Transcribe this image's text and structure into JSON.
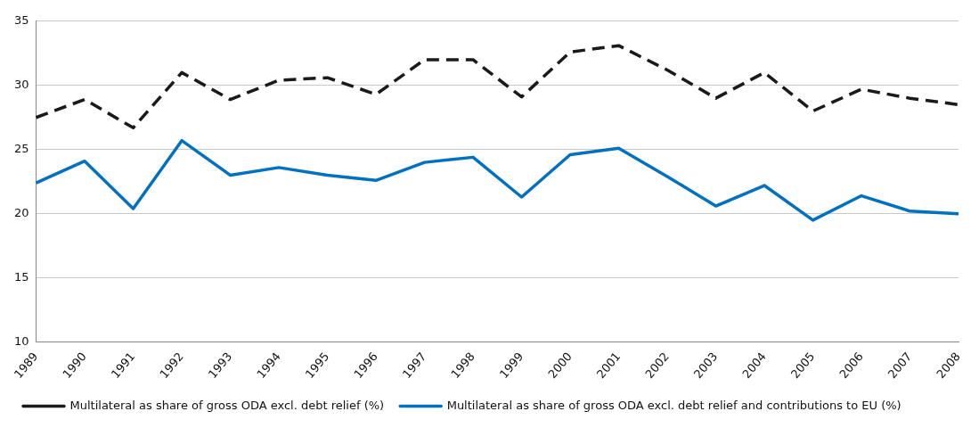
{
  "chart_data": {
    "type": "line",
    "categories": [
      "1989",
      "1990",
      "1991",
      "1992",
      "1993",
      "1994",
      "1995",
      "1996",
      "1997",
      "1998",
      "1999",
      "2000",
      "2001",
      "2002",
      "2003",
      "2004",
      "2005",
      "2006",
      "2007",
      "2008"
    ],
    "series": [
      {
        "name": "Multilateral as share of gross ODA excl. debt relief (%)",
        "color": "#1a1a1a",
        "line_style": "dashed",
        "values": [
          27.5,
          28.9,
          26.7,
          31.0,
          28.9,
          30.4,
          30.6,
          29.3,
          32.0,
          32.0,
          29.1,
          32.6,
          33.1,
          31.2,
          29.0,
          31.0,
          28.0,
          29.7,
          29.0,
          28.5
        ]
      },
      {
        "name": "Multilateral as share of gross ODA excl. debt relief and contributions to EU (%)",
        "color": "#0070c0",
        "line_style": "solid",
        "values": [
          22.4,
          24.1,
          20.4,
          25.7,
          23.0,
          23.6,
          23.0,
          22.6,
          24.0,
          24.4,
          21.3,
          24.6,
          25.1,
          22.9,
          20.6,
          22.2,
          19.5,
          21.4,
          20.2,
          20.0
        ]
      }
    ],
    "ylim": [
      10,
      35
    ],
    "yticks": [
      10,
      15,
      20,
      25,
      30,
      35
    ],
    "grid": "y",
    "legend": "bottom",
    "marker": "none"
  }
}
